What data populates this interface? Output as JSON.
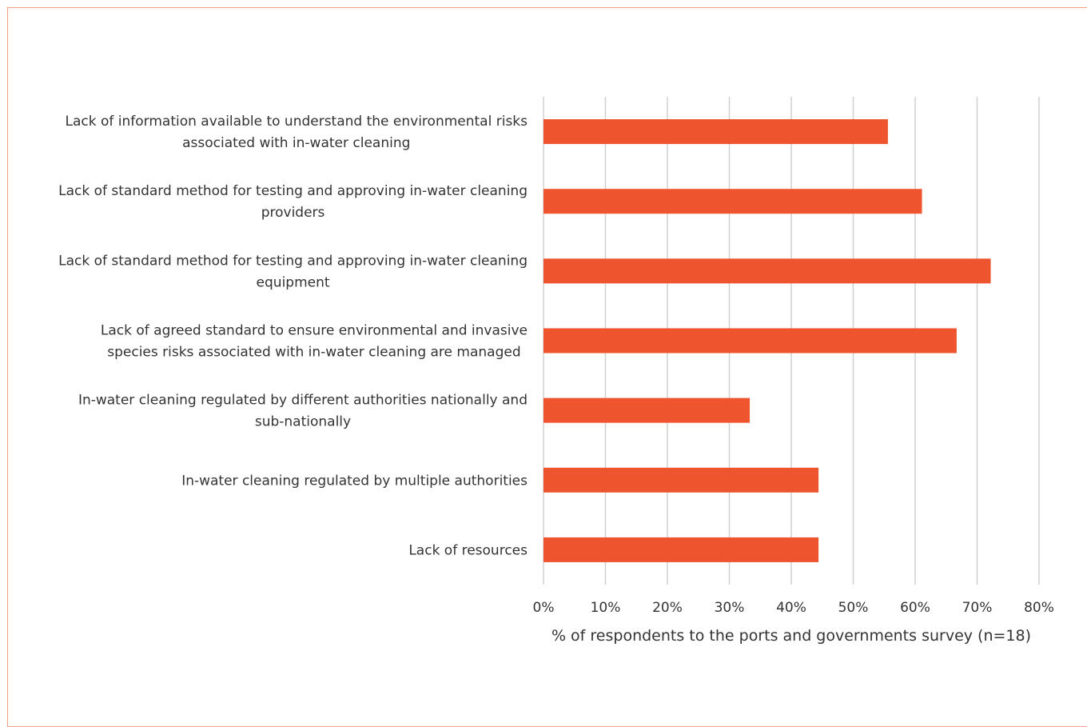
{
  "colors": {
    "bar": "#ee552e",
    "grid": "#d0d0d0",
    "frame": "#f2a08a",
    "text": "#333333"
  },
  "chart_data": {
    "type": "bar",
    "orientation": "horizontal",
    "categories": [
      [
        "Lack of information available to understand the environmental risks",
        "associated with in-water cleaning"
      ],
      [
        "Lack of standard method for testing and approving in-water cleaning",
        "providers"
      ],
      [
        "Lack of standard method for testing and approving in-water cleaning",
        "equipment"
      ],
      [
        "Lack of agreed standard to ensure environmental and invasive",
        "species risks associated with in-water cleaning are managed"
      ],
      [
        "In-water cleaning regulated by different authorities nationally and",
        "sub-nationally"
      ],
      [
        "In-water cleaning regulated by multiple authorities"
      ],
      [
        "Lack of resources"
      ]
    ],
    "values": [
      55.6,
      61.1,
      72.2,
      66.7,
      33.3,
      44.4,
      44.4
    ],
    "xlim": [
      0,
      80
    ],
    "xticks": [
      "0%",
      "10%",
      "20%",
      "30%",
      "40%",
      "50%",
      "60%",
      "70%",
      "80%"
    ],
    "xlabel": "% of respondents to the ports and governments survey (n=18)",
    "ylabel": "",
    "title": "",
    "grid": "vertical",
    "legend": "none"
  }
}
